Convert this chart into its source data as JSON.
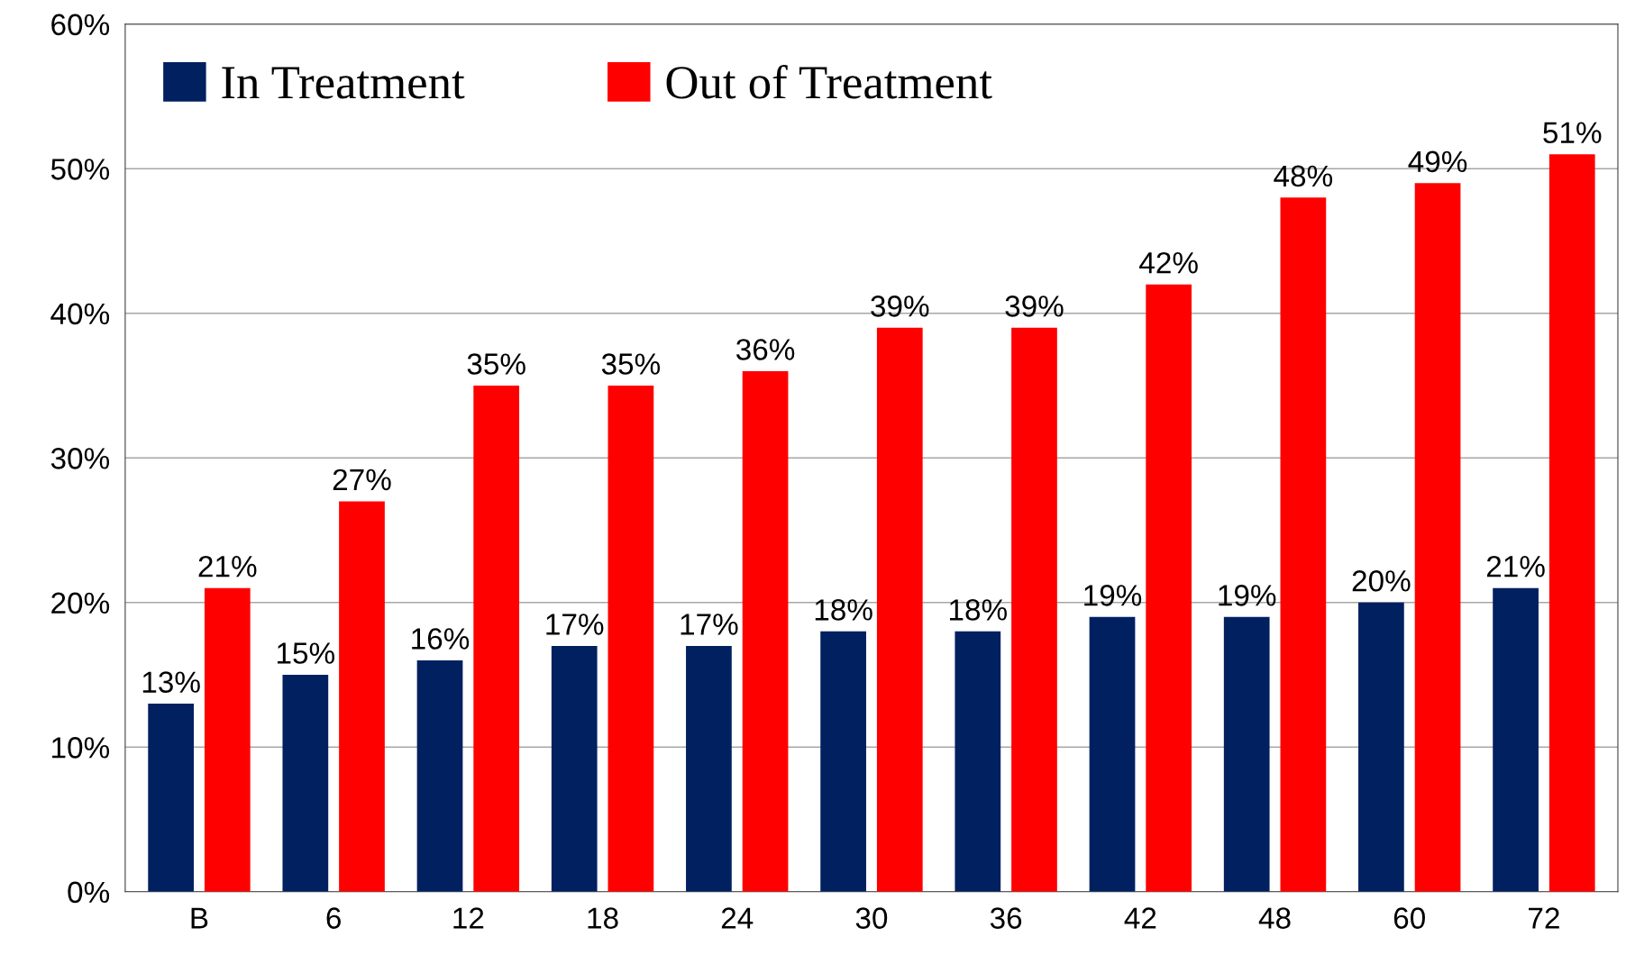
{
  "chart_data": {
    "type": "bar",
    "categories": [
      "B",
      "6",
      "12",
      "18",
      "24",
      "30",
      "36",
      "42",
      "48",
      "60",
      "72"
    ],
    "series": [
      {
        "name": "In Treatment",
        "color": "#002060",
        "values": [
          13,
          15,
          16,
          17,
          17,
          18,
          18,
          19,
          19,
          20,
          21
        ],
        "value_labels": [
          "13%",
          "15%",
          "16%",
          "17%",
          "17%",
          "18%",
          "18%",
          "19%",
          "19%",
          "20%",
          "21%"
        ]
      },
      {
        "name": "Out of Treatment",
        "color": "#ff0000",
        "values": [
          21,
          27,
          35,
          35,
          36,
          39,
          39,
          42,
          48,
          49,
          51
        ],
        "value_labels": [
          "21%",
          "27%",
          "35%",
          "35%",
          "36%",
          "39%",
          "39%",
          "42%",
          "48%",
          "49%",
          "51%"
        ]
      }
    ],
    "ylim": [
      0,
      60
    ],
    "yticks": [
      {
        "value": 0,
        "label": "0%"
      },
      {
        "value": 10,
        "label": "10%"
      },
      {
        "value": 20,
        "label": "20%"
      },
      {
        "value": 30,
        "label": "30%"
      },
      {
        "value": 40,
        "label": "40%"
      },
      {
        "value": 50,
        "label": "50%"
      },
      {
        "value": 60,
        "label": "60%"
      }
    ],
    "grid": "y",
    "legend": "top left"
  }
}
